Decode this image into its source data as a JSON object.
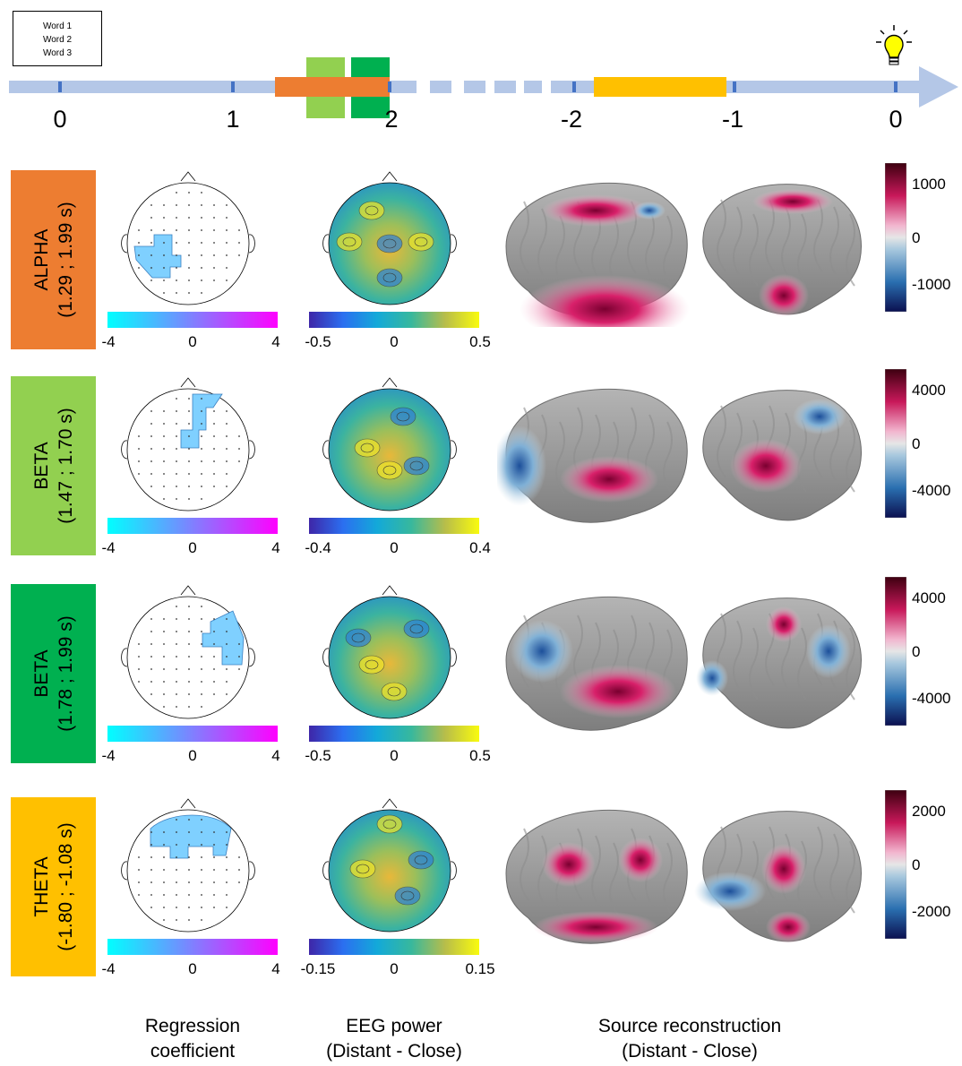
{
  "timeline": {
    "words": [
      "Word 1",
      "Word 2",
      "Word 3"
    ],
    "ticks": [
      "0",
      "1",
      "2",
      "-2",
      "-1",
      "0"
    ],
    "colors": {
      "axis": "#b4c7e7",
      "tick": "#4472c4",
      "alpha": "#ed7d31",
      "beta1": "#92d050",
      "beta2": "#00b050",
      "theta": "#ffc000",
      "bulb": "#ffff00"
    },
    "icon": "lightbulb-icon"
  },
  "bands": [
    {
      "name": "ALPHA",
      "window": "(1.29 ; 1.99 s)",
      "color": "#ed7d31",
      "reg_ticks": [
        "-4",
        "0",
        "4"
      ],
      "eeg_ticks": [
        "-0.5",
        "0",
        "0.5"
      ],
      "src_ticks": [
        "1000",
        "0",
        "-1000"
      ]
    },
    {
      "name": "BETA",
      "window": "(1.47 ; 1.70 s)",
      "color": "#92d050",
      "reg_ticks": [
        "-4",
        "0",
        "4"
      ],
      "eeg_ticks": [
        "-0.4",
        "0",
        "0.4"
      ],
      "src_ticks": [
        "4000",
        "0",
        "-4000"
      ]
    },
    {
      "name": "BETA",
      "window": "(1.78 ; 1.99 s)",
      "color": "#00b050",
      "reg_ticks": [
        "-4",
        "0",
        "4"
      ],
      "eeg_ticks": [
        "-0.5",
        "0",
        "0.5"
      ],
      "src_ticks": [
        "4000",
        "0",
        "-4000"
      ]
    },
    {
      "name": "THETA",
      "window": "(-1.80 ; -1.08 s)",
      "color": "#ffc000",
      "reg_ticks": [
        "-4",
        "0",
        "4"
      ],
      "eeg_ticks": [
        "-0.15",
        "0",
        "0.15"
      ],
      "src_ticks": [
        "2000",
        "0",
        "-2000"
      ]
    }
  ],
  "footer": {
    "col1": [
      "Regression",
      "coefficient"
    ],
    "col2": [
      "EEG power",
      "(Distant - Close)"
    ],
    "col3": [
      "Source reconstruction",
      "(Distant - Close)"
    ]
  }
}
